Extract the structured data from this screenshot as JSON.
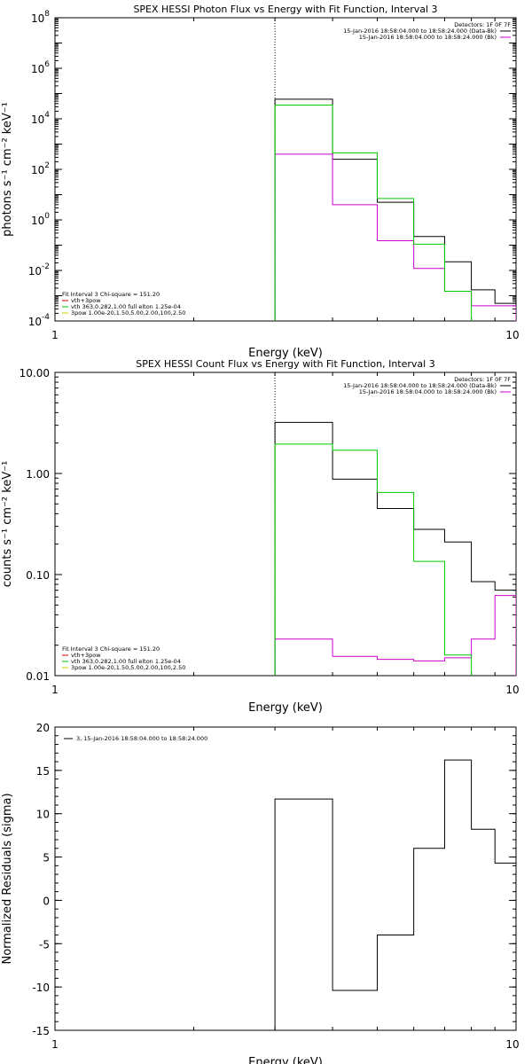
{
  "chart_data": [
    {
      "type": "line",
      "title": "SPEX HESSI Photon Flux vs Energy with Fit Function, Interval 3",
      "xlabel": "Energy (keV)",
      "ylabel": "photons s⁻¹ cm⁻² keV⁻¹",
      "xscale": "log",
      "yscale": "log",
      "xlim": [
        1,
        10
      ],
      "ylim": [
        0.0001,
        100000000
      ],
      "xtick_labels": [
        "1",
        "10"
      ],
      "ytick_labels": [
        {
          "base": "10",
          "exp": "-4"
        },
        {
          "base": "10",
          "exp": "-2"
        },
        {
          "base": "10",
          "exp": "0"
        },
        {
          "base": "10",
          "exp": "2"
        },
        {
          "base": "10",
          "exp": "4"
        },
        {
          "base": "10",
          "exp": "6"
        },
        {
          "base": "10",
          "exp": "8"
        }
      ],
      "legend_top": {
        "header": "Detectors: 1F 0F 7F",
        "lines": [
          {
            "text": "15-Jan-2016 18:58:04.000 to 18:58:24.000 (Data-Bk)",
            "color": "#000000"
          },
          {
            "text": "15-Jan-2016 18:58:04.000 to 18:58:24.000 (Bk)",
            "color": "#cc00cc"
          }
        ]
      },
      "legend_fit": {
        "header": "Fit Interval 3   Chi-square = 151.20",
        "lines": [
          {
            "text": "vth+3pow",
            "color": "#cc0000"
          },
          {
            "text": "vth 363,0.282,1.00  full elton 1.25e-04",
            "color": "#00cc00"
          },
          {
            "text": "3pow 1.00e-20,1.50,5.00,2.00,100,2.50",
            "color": "#cccc00"
          }
        ]
      },
      "vline_x": 3,
      "series": [
        {
          "name": "Data-Bk",
          "color": "#000000",
          "edges": [
            3,
            4,
            5,
            6,
            7,
            8,
            9,
            10
          ],
          "values": [
            60000,
            250,
            5,
            0.22,
            0.022,
            0.0017,
            0.0005
          ]
        },
        {
          "name": "Bk",
          "color": "#cc00cc",
          "edges": [
            3,
            4,
            5,
            6,
            7,
            8,
            9,
            10
          ],
          "values": [
            400,
            4,
            0.15,
            0.012,
            0.0015,
            0.0004,
            0.0004
          ]
        },
        {
          "name": "Fit",
          "color": "#00cc00",
          "edges": [
            3,
            4,
            5,
            6,
            7,
            8
          ],
          "values": [
            35000,
            450,
            7,
            0.11,
            0.0015
          ]
        }
      ]
    },
    {
      "type": "line",
      "title": "SPEX HESSI Count Flux vs Energy with Fit Function, Interval 3",
      "xlabel": "Energy (keV)",
      "ylabel": "counts s⁻¹ cm⁻² keV⁻¹",
      "xscale": "log",
      "yscale": "log",
      "xlim": [
        1,
        10
      ],
      "ylim": [
        0.01,
        10
      ],
      "xtick_labels": [
        "1",
        "10"
      ],
      "ytick_labels": [
        "0.01",
        "0.10",
        "1.00",
        "10.00"
      ],
      "legend_top": {
        "header": "Detectors: 1F 0F 7F",
        "lines": [
          {
            "text": "15-Jan-2016 18:58:04.000 to 18:58:24.000 (Data-Bk)",
            "color": "#000000"
          },
          {
            "text": "15-Jan-2016 18:58:04.000 to 18:58:24.000 (Bk)",
            "color": "#cc00cc"
          }
        ]
      },
      "legend_fit": {
        "header": "Fit Interval 3   Chi-square = 151.20",
        "lines": [
          {
            "text": "vth+3pow",
            "color": "#cc0000"
          },
          {
            "text": "vth 363,0.282,1.00  full elton 1.25e-04",
            "color": "#00cc00"
          },
          {
            "text": "3pow 1.00e-20,1.50,5.00,2.00,100,2.50",
            "color": "#cccc00"
          }
        ]
      },
      "vline_x": 3,
      "series": [
        {
          "name": "Data-Bk",
          "color": "#000000",
          "edges": [
            3,
            4,
            5,
            6,
            7,
            8,
            9,
            10
          ],
          "values": [
            3.2,
            0.88,
            0.45,
            0.28,
            0.21,
            0.085,
            0.07
          ]
        },
        {
          "name": "Bk",
          "color": "#cc00cc",
          "edges": [
            3,
            4,
            5,
            6,
            7,
            8,
            9,
            10
          ],
          "values": [
            0.023,
            0.0155,
            0.0145,
            0.014,
            0.015,
            0.023,
            0.062
          ]
        },
        {
          "name": "Fit",
          "color": "#00cc00",
          "edges": [
            3,
            4,
            5,
            6,
            7,
            8
          ],
          "values": [
            1.95,
            1.7,
            0.65,
            0.135,
            0.016
          ]
        }
      ]
    },
    {
      "type": "line",
      "title": "",
      "xlabel": "Energy (keV)",
      "ylabel": "Normalized Residuals (sigma)",
      "xscale": "log",
      "yscale": "linear",
      "xlim": [
        1,
        10
      ],
      "ylim": [
        -15,
        20
      ],
      "xtick_labels": [
        "1",
        "10"
      ],
      "ytick_labels": [
        "-15",
        "-10",
        "-5",
        "0",
        "5",
        "10",
        "15",
        "20"
      ],
      "legend_top": {
        "header": "",
        "lines": [
          {
            "text": "3, 15-Jan-2016 18:58:04.000 to 18:58:24.000",
            "color": "#000000"
          }
        ]
      },
      "series": [
        {
          "name": "3, 15-Jan-2016 18:58:04.000 to 18:58:24.000",
          "color": "#000000",
          "edges": [
            3,
            4,
            5,
            6,
            7,
            8,
            9,
            10
          ],
          "values": [
            11.7,
            -10.4,
            -4.0,
            6.0,
            16.2,
            8.2,
            4.3
          ]
        }
      ]
    }
  ]
}
